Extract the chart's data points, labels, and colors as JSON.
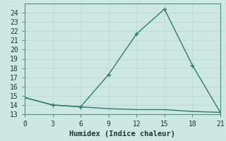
{
  "xlabel": "Humidex (Indice chaleur)",
  "background_color": "#cce8e0",
  "line_color": "#2d7d6e",
  "grid_color_major": "#b8d8d0",
  "grid_color_minor": "#d4ecea",
  "line1_x": [
    0,
    3,
    6,
    9,
    12,
    15,
    18,
    21
  ],
  "line1_y": [
    14.8,
    14.0,
    13.8,
    17.3,
    21.7,
    24.4,
    18.3,
    13.2
  ],
  "line2_x": [
    0,
    3,
    6,
    9,
    12,
    15,
    18,
    21
  ],
  "line2_y": [
    14.8,
    14.0,
    13.8,
    13.6,
    13.5,
    13.5,
    13.3,
    13.2
  ],
  "xlim": [
    0,
    21
  ],
  "ylim": [
    13,
    25
  ],
  "xticks": [
    0,
    3,
    6,
    9,
    12,
    15,
    18,
    21
  ],
  "yticks": [
    13,
    14,
    15,
    16,
    17,
    18,
    19,
    20,
    21,
    22,
    23,
    24
  ],
  "marker": "+",
  "markersize": 4,
  "linewidth": 1.0,
  "tick_fontsize": 7.0,
  "xlabel_fontsize": 7.5
}
